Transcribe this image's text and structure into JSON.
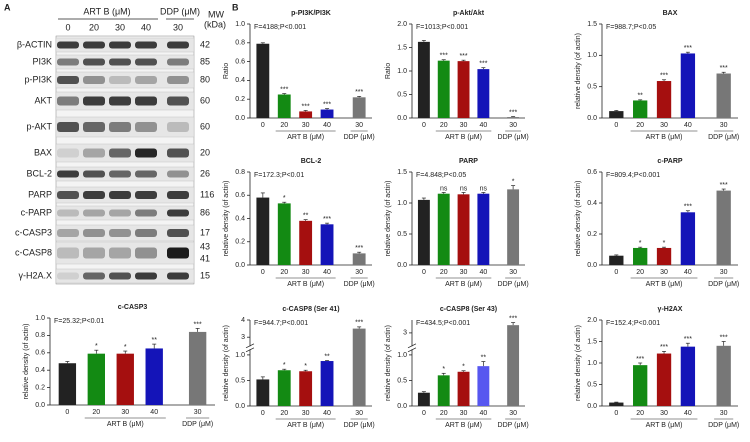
{
  "panel_labels": [
    "A",
    "B"
  ],
  "blot": {
    "group_labels": [
      "ART B (μM)",
      "DDP (μM)"
    ],
    "mw_header": [
      "MW",
      "(kDa)"
    ],
    "lanes": [
      0,
      20,
      30,
      40,
      30
    ],
    "rows": [
      {
        "label": "β-ACTIN",
        "mw": [
          42
        ]
      },
      {
        "label": "PI3K",
        "mw": [
          85
        ]
      },
      {
        "label": "p-PI3K",
        "mw": [
          80
        ]
      },
      {
        "label": "AKT",
        "mw": [
          60
        ]
      },
      {
        "label": "p-AKT",
        "mw": [
          60
        ]
      },
      {
        "label": "BAX",
        "mw": [
          20
        ]
      },
      {
        "label": "BCL-2",
        "mw": [
          26
        ]
      },
      {
        "label": "PARP",
        "mw": [
          116
        ]
      },
      {
        "label": "c-PARP",
        "mw": [
          86
        ]
      },
      {
        "label": "c-CASP3",
        "mw": [
          17
        ]
      },
      {
        "label": "c-CASP8",
        "mw": [
          43,
          41
        ]
      },
      {
        "label": "γ-H2A.X",
        "mw": [
          15
        ]
      }
    ]
  },
  "chart_data": [
    {
      "type": "bar",
      "title": "c-CASP3",
      "annotation": "F=25.32;P<0.01",
      "y_label": "relative density (of actin)",
      "categories": [
        0,
        20,
        30,
        40,
        30
      ],
      "group_labels": [
        "ART B (μM)",
        "DDP (μM)"
      ],
      "values": [
        0.48,
        0.59,
        0.59,
        0.65,
        0.84
      ],
      "errors": [
        0.02,
        0.04,
        0.03,
        0.05,
        0.04
      ],
      "significance": [
        null,
        "*",
        "*",
        "**",
        "***"
      ],
      "colors": [
        "#222222",
        "#138a13",
        "#a50f0f",
        "#1414b8",
        "#777777"
      ],
      "ylim": [
        0,
        1
      ],
      "yticks": [
        {
          "value": 0,
          "label": "0.0"
        },
        0.2,
        0.4,
        0.6,
        0.8,
        {
          "value": 1,
          "label": "1.0"
        }
      ]
    },
    {
      "type": "bar",
      "title": "p-PI3K/PI3K",
      "annotation": "F=4188;P<0.001",
      "y_label": "Ratio",
      "categories": [
        0,
        20,
        30,
        40,
        30
      ],
      "group_labels": [
        "ART B (μM)",
        "DDP (μM)"
      ],
      "values": [
        0.79,
        0.25,
        0.07,
        0.09,
        0.22
      ],
      "errors": [
        0.01,
        0.01,
        0.01,
        0.01,
        0.01
      ],
      "significance": [
        null,
        "***",
        "***",
        "***",
        "***"
      ],
      "colors": [
        "#222222",
        "#138a13",
        "#a50f0f",
        "#1414b8",
        "#777777"
      ],
      "ylim": [
        0,
        1
      ],
      "yticks": [
        {
          "value": 0,
          "label": "0.0"
        },
        0.2,
        0.4,
        0.6,
        0.8,
        {
          "value": 1,
          "label": "1.0"
        }
      ]
    },
    {
      "type": "bar",
      "title": "p-Akt/Akt",
      "annotation": "F=1013;P<0.001",
      "y_label": "Ratio",
      "categories": [
        0,
        20,
        30,
        40,
        30
      ],
      "group_labels": [
        "ART B (μM)",
        "DDP (μM)"
      ],
      "values": [
        1.62,
        1.22,
        1.21,
        1.04,
        0.02
      ],
      "errors": [
        0.03,
        0.02,
        0.02,
        0.03,
        0.01
      ],
      "significance": [
        null,
        "***",
        "***",
        "***",
        "***"
      ],
      "colors": [
        "#222222",
        "#138a13",
        "#a50f0f",
        "#1414b8",
        "#777777"
      ],
      "ylim": [
        0,
        2
      ],
      "yticks": [
        {
          "value": 0,
          "label": "0.0"
        },
        0.5,
        {
          "value": 1,
          "label": "1.0"
        },
        1.5,
        {
          "value": 2,
          "label": "2.0"
        }
      ]
    },
    {
      "type": "bar",
      "title": "BAX",
      "annotation": "F=988.7;P<0.05",
      "y_label": "relative density (of actin)",
      "categories": [
        0,
        20,
        30,
        40,
        30
      ],
      "group_labels": [
        "ART B (μM)",
        "DDP (μM)"
      ],
      "values": [
        0.11,
        0.28,
        0.59,
        1.03,
        0.71
      ],
      "errors": [
        0.01,
        0.01,
        0.02,
        0.02,
        0.02
      ],
      "significance": [
        null,
        "**",
        "***",
        "***",
        "***"
      ],
      "colors": [
        "#222222",
        "#138a13",
        "#a50f0f",
        "#1414b8",
        "#777777"
      ],
      "ylim": [
        0,
        1.5
      ],
      "yticks": [
        {
          "value": 0,
          "label": "0.0"
        },
        0.5,
        {
          "value": 1,
          "label": "1.0"
        },
        1.5
      ]
    },
    {
      "type": "bar",
      "title": "BCL-2",
      "annotation": "F=172.3;P<0.01",
      "y_label": "relative density (of actin)",
      "categories": [
        0,
        20,
        30,
        40,
        30
      ],
      "group_labels": [
        "ART B (μM)",
        "DDP (μM)"
      ],
      "values": [
        0.58,
        0.53,
        0.38,
        0.35,
        0.1
      ],
      "errors": [
        0.04,
        0.01,
        0.01,
        0.01,
        0.01
      ],
      "significance": [
        null,
        "*",
        "**",
        "***",
        "***"
      ],
      "colors": [
        "#222222",
        "#138a13",
        "#a50f0f",
        "#1414b8",
        "#777777"
      ],
      "ylim": [
        0,
        0.8
      ],
      "yticks": [
        {
          "value": 0,
          "label": "0.0"
        },
        0.2,
        0.4,
        0.6,
        0.8
      ]
    },
    {
      "type": "bar",
      "title": "PARP",
      "annotation": "F=4.848;P<0.05",
      "y_label": "relative density (of actin)",
      "categories": [
        0,
        20,
        30,
        40,
        30
      ],
      "group_labels": [
        "ART B (μM)",
        "DDP (μM)"
      ],
      "values": [
        1.05,
        1.15,
        1.14,
        1.15,
        1.22
      ],
      "errors": [
        0.03,
        0.02,
        0.03,
        0.02,
        0.06
      ],
      "significance": [
        null,
        "ns",
        "ns",
        "ns",
        "*"
      ],
      "colors": [
        "#222222",
        "#138a13",
        "#a50f0f",
        "#1414b8",
        "#777777"
      ],
      "ylim": [
        0,
        1.5
      ],
      "yticks": [
        {
          "value": 0,
          "label": "0.0"
        },
        0.5,
        {
          "value": 1,
          "label": "1.0"
        },
        1.5
      ]
    },
    {
      "type": "bar",
      "title": "c-PARP",
      "annotation": "F=809.4;P<0.001",
      "y_label": "relative density (of actin)",
      "categories": [
        0,
        20,
        30,
        40,
        30
      ],
      "group_labels": [
        "ART B (μM)",
        "DDP (μM)"
      ],
      "values": [
        0.06,
        0.11,
        0.11,
        0.34,
        0.48
      ],
      "errors": [
        0.005,
        0.005,
        0.005,
        0.01,
        0.01
      ],
      "significance": [
        null,
        "*",
        "*",
        "***",
        "***"
      ],
      "colors": [
        "#222222",
        "#138a13",
        "#a50f0f",
        "#1414b8",
        "#777777"
      ],
      "ylim": [
        0,
        0.6
      ],
      "yticks": [
        {
          "value": 0,
          "label": "0.0"
        },
        0.2,
        0.4,
        0.6
      ]
    },
    {
      "type": "bar",
      "title": "c-CASP8 (Ser 41)",
      "annotation": "F=944.7;P<0.001",
      "y_label": "relative density (of actin)",
      "categories": [
        0,
        20,
        30,
        40,
        30
      ],
      "group_labels": [
        "ART B (μM)",
        "DDP (μM)"
      ],
      "values": [
        0.52,
        0.7,
        0.68,
        0.88,
        3.5
      ],
      "errors": [
        0.05,
        0.02,
        0.02,
        0.01,
        0.1
      ],
      "significance": [
        null,
        "*",
        "*",
        "**",
        "***"
      ],
      "colors": [
        "#222222",
        "#138a13",
        "#a50f0f",
        "#1414b8",
        "#777777"
      ],
      "ylim": [
        0,
        4
      ],
      "y_break": [
        1.1,
        2.5
      ],
      "yticks": [
        {
          "value": 0,
          "label": "0.0"
        },
        0.5,
        {
          "value": 1,
          "label": "1.0"
        },
        3,
        4
      ]
    },
    {
      "type": "bar",
      "title": "c-CASP8 (Ser 43)",
      "annotation": "F=434.5;P<0.001",
      "y_label": "relative density (of actin)",
      "categories": [
        0,
        20,
        30,
        40,
        30
      ],
      "group_labels": [
        "ART B (μM)",
        "DDP (μM)"
      ],
      "values": [
        0.26,
        0.6,
        0.67,
        0.78,
        3.3
      ],
      "errors": [
        0.02,
        0.04,
        0.02,
        0.09,
        0.1
      ],
      "significance": [
        null,
        "*",
        "*",
        "**",
        "***"
      ],
      "colors": [
        "#222222",
        "#138a13",
        "#a50f0f",
        "#5757f0",
        "#777777"
      ],
      "ylim": [
        0,
        3.5
      ],
      "y_break": [
        1.1,
        2.5
      ],
      "yticks": [
        {
          "value": 0,
          "label": "0.0"
        },
        0.5,
        {
          "value": 1,
          "label": "1.0"
        },
        3
      ]
    },
    {
      "type": "bar",
      "title": "γ-H2AX",
      "annotation": "F=152.4;P<0.001",
      "y_label": "relative density (of actin)",
      "categories": [
        0,
        20,
        30,
        40,
        30
      ],
      "group_labels": [
        "ART B (μM)",
        "DDP (μM)"
      ],
      "values": [
        0.08,
        0.95,
        1.22,
        1.38,
        1.4
      ],
      "errors": [
        0.01,
        0.05,
        0.05,
        0.08,
        0.1
      ],
      "significance": [
        null,
        "***",
        "***",
        "***",
        "***"
      ],
      "colors": [
        "#222222",
        "#138a13",
        "#a50f0f",
        "#1414b8",
        "#777777"
      ],
      "ylim": [
        0,
        2
      ],
      "yticks": [
        {
          "value": 0,
          "label": "0.0"
        },
        0.5,
        {
          "value": 1,
          "label": "1.0"
        },
        1.5,
        {
          "value": 2,
          "label": "2.0"
        }
      ]
    }
  ]
}
